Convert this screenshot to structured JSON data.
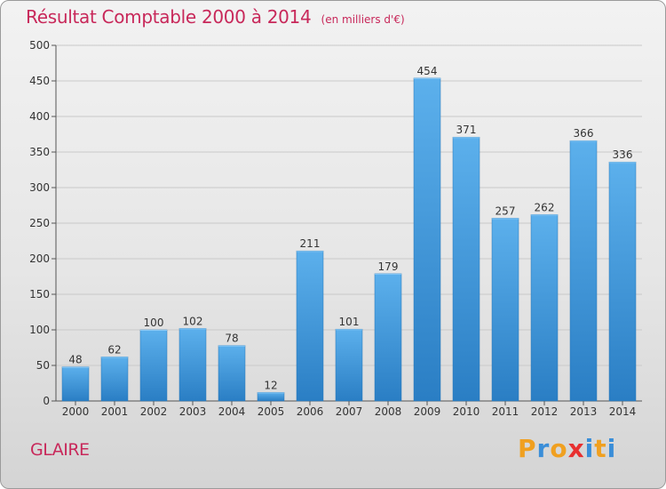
{
  "header": {
    "title": "Résultat Comptable 2000 à 2014",
    "units": "(en milliers d'€)"
  },
  "footer": {
    "commune": "GLAIRE",
    "logo_text": "Proxiti"
  },
  "colors": {
    "title": "#c8285a",
    "bar_top": "#5cb0ec",
    "bar_bottom": "#2a7ec4",
    "logo_letters": [
      "#f0a020",
      "#3a8ed8",
      "#f0a020",
      "#e83030",
      "#3a8ed8",
      "#f0a020",
      "#3a8ed8"
    ]
  },
  "chart_data": {
    "type": "bar",
    "title": "Résultat Comptable 2000 à 2014",
    "xlabel": "",
    "ylabel": "",
    "ylim": [
      0,
      500
    ],
    "yticks": [
      0,
      50,
      100,
      150,
      200,
      250,
      300,
      350,
      400,
      450,
      500
    ],
    "grid": true,
    "categories": [
      "2000",
      "2001",
      "2002",
      "2003",
      "2004",
      "2005",
      "2006",
      "2007",
      "2008",
      "2009",
      "2010",
      "2011",
      "2012",
      "2013",
      "2014"
    ],
    "values": [
      48,
      62,
      100,
      102,
      78,
      12,
      211,
      101,
      179,
      454,
      371,
      257,
      262,
      366,
      336
    ]
  }
}
